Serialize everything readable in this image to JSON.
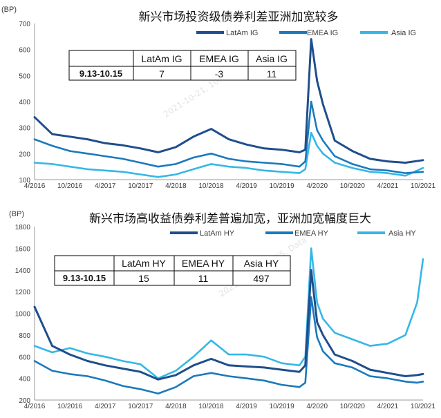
{
  "colors": {
    "latam": "#1f4e8c",
    "emea": "#1a79bd",
    "asia": "#35b7e6"
  },
  "watermark": "2021-10-21, 10:35, Data",
  "chart_data": [
    {
      "type": "line",
      "title": "新兴市场投资级债券利差亚洲加宽较多",
      "unit_label": "(BP)",
      "ylim": [
        100,
        700
      ],
      "yticks": [
        100,
        200,
        300,
        400,
        500,
        600,
        700
      ],
      "x_range": [
        "2016-04",
        "2021-10"
      ],
      "xtick_labels": [
        "4/2016",
        "10/2016",
        "4/2017",
        "10/2017",
        "4/2018",
        "10/2018",
        "4/2019",
        "10/2019",
        "4/2020",
        "10/2020",
        "4/2021",
        "10/2021"
      ],
      "legend_position": "top",
      "x": [
        "2016-04",
        "2016-07",
        "2016-10",
        "2017-01",
        "2017-04",
        "2017-07",
        "2017-10",
        "2018-01",
        "2018-04",
        "2018-07",
        "2018-10",
        "2019-01",
        "2019-04",
        "2019-07",
        "2019-10",
        "2020-01",
        "2020-02",
        "2020-03",
        "2020-04",
        "2020-05",
        "2020-07",
        "2020-10",
        "2021-01",
        "2021-04",
        "2021-07",
        "2021-10"
      ],
      "series": [
        {
          "name": "LatAm IG",
          "values": [
            340,
            275,
            265,
            255,
            240,
            232,
            220,
            205,
            225,
            265,
            295,
            255,
            235,
            220,
            215,
            205,
            215,
            640,
            480,
            390,
            250,
            210,
            180,
            170,
            165,
            175
          ]
        },
        {
          "name": "EMEA IG",
          "values": [
            255,
            230,
            210,
            200,
            190,
            180,
            165,
            150,
            160,
            185,
            200,
            180,
            170,
            165,
            160,
            150,
            170,
            400,
            290,
            250,
            190,
            160,
            140,
            135,
            125,
            130
          ]
        },
        {
          "name": "Asia IG",
          "values": [
            165,
            160,
            150,
            140,
            135,
            130,
            120,
            110,
            120,
            140,
            160,
            150,
            145,
            135,
            130,
            125,
            140,
            280,
            230,
            200,
            165,
            145,
            130,
            125,
            115,
            145
          ]
        }
      ],
      "table": {
        "headers": [
          "",
          "LatAm IG",
          "EMEA IG",
          "Asia IG"
        ],
        "row": [
          "9.13-10.15",
          "7",
          "-3",
          "11"
        ]
      }
    },
    {
      "type": "line",
      "title": "新兴市场高收益债券利差普遍加宽，亚洲加宽幅度巨大",
      "unit_label": "(BP)",
      "ylim": [
        200,
        1800
      ],
      "yticks": [
        200,
        400,
        600,
        800,
        1000,
        1200,
        1400,
        1600,
        1800
      ],
      "x_range": [
        "2016-04",
        "2021-10"
      ],
      "xtick_labels": [
        "4/2016",
        "10/2016",
        "4/2017",
        "10/2017",
        "4/2018",
        "10/2018",
        "4/2019",
        "10/2019",
        "4/2020",
        "10/2020",
        "4/2021",
        "10/2021"
      ],
      "legend_position": "top",
      "x": [
        "2016-04",
        "2016-07",
        "2016-10",
        "2017-01",
        "2017-04",
        "2017-07",
        "2017-10",
        "2018-01",
        "2018-04",
        "2018-07",
        "2018-10",
        "2019-01",
        "2019-04",
        "2019-07",
        "2019-10",
        "2020-01",
        "2020-02",
        "2020-03",
        "2020-04",
        "2020-05",
        "2020-07",
        "2020-10",
        "2021-01",
        "2021-04",
        "2021-07",
        "2021-09",
        "2021-10"
      ],
      "series": [
        {
          "name": "LatAm HY",
          "values": [
            1060,
            700,
            620,
            560,
            520,
            490,
            460,
            390,
            430,
            520,
            580,
            520,
            510,
            500,
            480,
            460,
            520,
            1400,
            920,
            800,
            620,
            560,
            480,
            450,
            420,
            430,
            440
          ]
        },
        {
          "name": "EMEA HY",
          "values": [
            560,
            470,
            440,
            420,
            380,
            330,
            300,
            260,
            320,
            420,
            450,
            420,
            400,
            380,
            340,
            320,
            360,
            1150,
            780,
            650,
            540,
            500,
            420,
            400,
            370,
            360,
            370
          ]
        },
        {
          "name": "Asia HY",
          "values": [
            700,
            640,
            680,
            630,
            600,
            560,
            530,
            400,
            470,
            600,
            750,
            620,
            620,
            600,
            540,
            520,
            600,
            1600,
            1100,
            950,
            820,
            760,
            700,
            720,
            800,
            1100,
            1500
          ]
        }
      ],
      "table": {
        "headers": [
          "",
          "LatAm HY",
          "EMEA HY",
          "Asia HY"
        ],
        "row": [
          "9.13-10.15",
          "15",
          "11",
          "497"
        ]
      }
    }
  ]
}
